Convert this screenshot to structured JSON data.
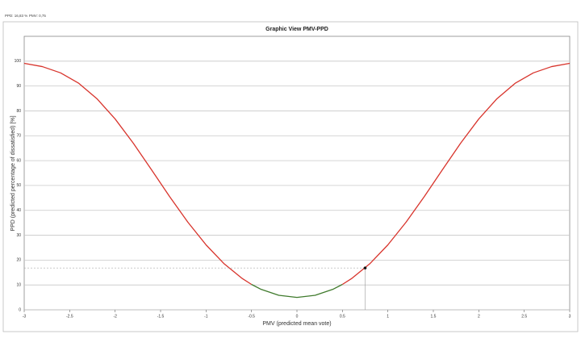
{
  "chart_data": {
    "type": "line",
    "info": [
      "PPD: 16,83 %",
      "PMV: 0,75"
    ],
    "title": "Graphic View PMV-PPD",
    "x_label": "PMV (predicted mean vote)",
    "y_label": "PPD (predicted percentage of dissatisfied) [%]",
    "xlim": [
      -3,
      3
    ],
    "xticks": [
      -3,
      -2.5,
      -2,
      -1.5,
      -1,
      -0.5,
      0,
      0.5,
      1,
      1.5,
      2,
      2.5,
      3
    ],
    "ylim": [
      0,
      110
    ],
    "yticks": [
      0,
      10,
      20,
      30,
      40,
      50,
      60,
      70,
      80,
      90,
      100
    ],
    "grid": true,
    "series": [
      {
        "color": "#d8342c",
        "x": [
          -3,
          -2.8,
          -2.6,
          -2.4,
          -2.2,
          -2,
          -1.8,
          -1.6,
          -1.4,
          -1.2,
          -1,
          -0.8,
          -0.6,
          -0.5
        ],
        "values": [
          99.12,
          97.81,
          95.3,
          91.1,
          84.91,
          76.76,
          67.02,
          56.35,
          45.51,
          35.25,
          26.12,
          18.49,
          12.55,
          10.22
        ]
      },
      {
        "color": "#3f7a2c",
        "x": [
          -0.5,
          -0.4,
          -0.2,
          0,
          0.2,
          0.4,
          0.5
        ],
        "values": [
          10.22,
          8.33,
          5.83,
          5,
          5.83,
          8.33,
          10.22
        ]
      },
      {
        "color": "#d8342c",
        "x": [
          0.5,
          0.6,
          0.8,
          1,
          1.2,
          1.4,
          1.6,
          1.8,
          2,
          2.2,
          2.4,
          2.6,
          2.8,
          3
        ],
        "values": [
          10.22,
          12.55,
          18.49,
          26.12,
          35.25,
          45.51,
          56.35,
          67.02,
          76.76,
          84.91,
          91.1,
          95.3,
          97.81,
          99.12
        ]
      }
    ],
    "point": {
      "x": 0.75,
      "y": 16.83
    }
  }
}
